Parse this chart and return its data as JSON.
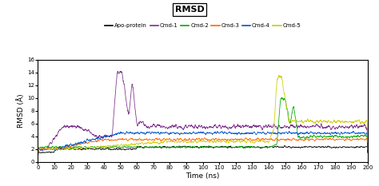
{
  "title": "RMSD",
  "xlabel": "Time (ns)",
  "ylabel": "RMSD (Å)",
  "xlim": [
    0,
    200
  ],
  "ylim": [
    0,
    16
  ],
  "xticks": [
    0,
    10,
    20,
    30,
    40,
    50,
    60,
    70,
    80,
    90,
    100,
    110,
    120,
    130,
    140,
    150,
    160,
    170,
    180,
    190,
    200
  ],
  "yticks": [
    0,
    2,
    4,
    6,
    8,
    10,
    12,
    14,
    16
  ],
  "series_labels": [
    "Apo-protein",
    "Cmd-1",
    "Cmd-2",
    "Cmd-3",
    "Cmd-4",
    "Cmd-5"
  ],
  "series_colors": [
    "#000000",
    "#7b2d8b",
    "#00aa00",
    "#ff6600",
    "#0055cc",
    "#cccc00"
  ],
  "n_points": 2000,
  "seed": 42
}
